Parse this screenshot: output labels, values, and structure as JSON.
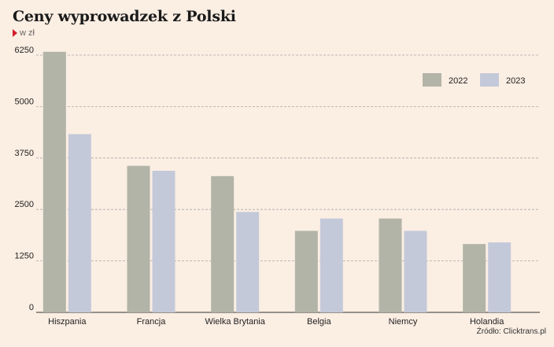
{
  "title": "Ceny wyprowadzek z Polski",
  "subtitle": "w zł",
  "source": "Źródło: Clicktrans.pl",
  "colors": {
    "background": "#fbeee3",
    "s2022": "#b3b4a8",
    "s2023": "#c4c9d9",
    "marker": "#d21f2b"
  },
  "chart_data": {
    "type": "bar",
    "categories": [
      "Hiszpania",
      "Francja",
      "Wielka Brytania",
      "Belgia",
      "Niemcy",
      "Holandia"
    ],
    "series": [
      {
        "name": "2022",
        "values": [
          6330,
          3560,
          3310,
          1980,
          2280,
          1660
        ]
      },
      {
        "name": "2023",
        "values": [
          4330,
          3440,
          2440,
          2280,
          1980,
          1700
        ]
      }
    ],
    "yticks": [
      "0",
      "1250",
      "2500",
      "3750",
      "5000",
      "6250"
    ],
    "ylim": [
      0,
      6250
    ],
    "grid": true,
    "legend_position": "top-right"
  }
}
